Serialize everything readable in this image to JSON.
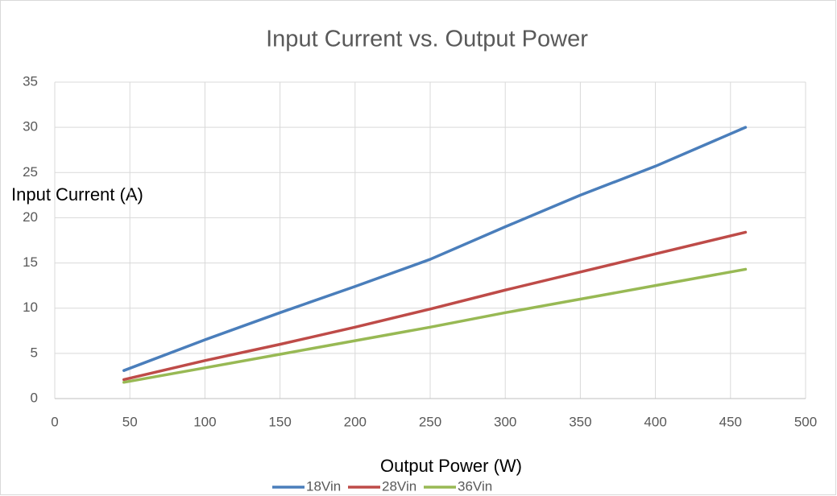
{
  "chart_data": {
    "type": "line",
    "title": "Input Current vs. Output Power",
    "x_label": "Output Power (W)",
    "y_label": "Input Current (A)",
    "x": [
      46,
      100,
      150,
      200,
      250,
      300,
      350,
      400,
      460
    ],
    "series": [
      {
        "name": "18Vin",
        "color": "#4a7ebb",
        "values": [
          3.1,
          6.5,
          9.5,
          12.4,
          15.4,
          19.0,
          22.5,
          25.7,
          30.0
        ]
      },
      {
        "name": "28Vin",
        "color": "#be4b48",
        "values": [
          2.1,
          4.2,
          6.0,
          7.9,
          9.9,
          12.0,
          14.0,
          16.0,
          18.4
        ]
      },
      {
        "name": "36Vin",
        "color": "#98b954",
        "values": [
          1.8,
          3.4,
          4.9,
          6.4,
          7.9,
          9.5,
          11.0,
          12.5,
          14.3
        ]
      }
    ],
    "xlim": [
      0,
      500
    ],
    "xticks": [
      0,
      50,
      100,
      150,
      200,
      250,
      300,
      350,
      400,
      450,
      500
    ],
    "ylim": [
      0,
      35
    ],
    "yticks": [
      0,
      5,
      10,
      15,
      20,
      25,
      30,
      35
    ],
    "grid": true,
    "legend": "bottom"
  }
}
